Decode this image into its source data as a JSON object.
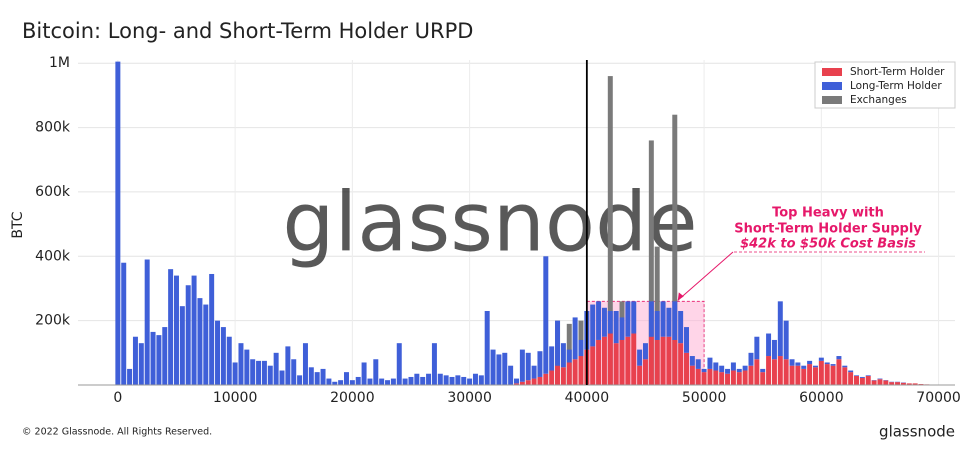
{
  "chart_data": {
    "type": "bar",
    "title": "Bitcoin: Long- and Short-Term Holder URPD",
    "y_label": "BTC",
    "watermark": "glassnode",
    "footer_left": "© 2022 Glassnode. All Rights Reserved.",
    "footer_right": "glassnode",
    "annotation": {
      "lines": [
        "Top Heavy with",
        "Short-Term Holder Supply"
      ],
      "sub": "$42k to $50k Cost Basis",
      "x": [
        40000,
        50000
      ],
      "y": [
        0,
        260000
      ],
      "arrow_to": [
        47500,
        260000
      ]
    },
    "vline": 40000,
    "xlim": [
      -3400,
      71400
    ],
    "ylim": [
      0,
      1010000
    ],
    "xticks": [
      0,
      10000,
      20000,
      30000,
      40000,
      50000,
      60000,
      70000
    ],
    "yticks": [
      {
        "value": 200000,
        "label": "200k"
      },
      {
        "value": 400000,
        "label": "400k"
      },
      {
        "value": 600000,
        "label": "600k"
      },
      {
        "value": 800000,
        "label": "800k"
      },
      {
        "value": 1000000,
        "label": "1M"
      }
    ],
    "grid": true,
    "legend": "top-right",
    "bin_width": 500,
    "x": [
      0,
      500,
      1000,
      1500,
      2000,
      2500,
      3000,
      3500,
      4000,
      4500,
      5000,
      5500,
      6000,
      6500,
      7000,
      7500,
      8000,
      8500,
      9000,
      9500,
      10000,
      10500,
      11000,
      11500,
      12000,
      12500,
      13000,
      13500,
      14000,
      14500,
      15000,
      15500,
      16000,
      16500,
      17000,
      17500,
      18000,
      18500,
      19000,
      19500,
      20000,
      20500,
      21000,
      21500,
      22000,
      22500,
      23000,
      23500,
      24000,
      24500,
      25000,
      25500,
      26000,
      26500,
      27000,
      27500,
      28000,
      28500,
      29000,
      29500,
      30000,
      30500,
      31000,
      31500,
      32000,
      32500,
      33000,
      33500,
      34000,
      34500,
      35000,
      35500,
      36000,
      36500,
      37000,
      37500,
      38000,
      38500,
      39000,
      39500,
      40000,
      40500,
      41000,
      41500,
      42000,
      42500,
      43000,
      43500,
      44000,
      44500,
      45000,
      45500,
      46000,
      46500,
      47000,
      47500,
      48000,
      48500,
      49000,
      49500,
      50000,
      50500,
      51000,
      51500,
      52000,
      52500,
      53000,
      53500,
      54000,
      54500,
      55000,
      55500,
      56000,
      56500,
      57000,
      57500,
      58000,
      58500,
      59000,
      59500,
      60000,
      60500,
      61000,
      61500,
      62000,
      62500,
      63000,
      63500,
      64000,
      64500,
      65000,
      65500,
      66000,
      66500,
      67000,
      67500,
      68000,
      68500,
      69000
    ],
    "series": [
      {
        "name": "Short-Term Holder",
        "color": "#e8414e",
        "values": [
          0,
          0,
          0,
          0,
          0,
          0,
          0,
          0,
          0,
          0,
          0,
          0,
          0,
          0,
          0,
          0,
          0,
          0,
          0,
          0,
          0,
          0,
          0,
          0,
          0,
          0,
          0,
          0,
          0,
          0,
          0,
          0,
          0,
          0,
          0,
          0,
          0,
          0,
          0,
          0,
          0,
          0,
          0,
          0,
          0,
          0,
          0,
          0,
          0,
          0,
          0,
          0,
          0,
          0,
          0,
          0,
          0,
          0,
          0,
          0,
          0,
          0,
          0,
          0,
          0,
          0,
          0,
          0,
          5000,
          10000,
          15000,
          20000,
          25000,
          35000,
          45000,
          60000,
          55000,
          70000,
          80000,
          90000,
          110000,
          120000,
          140000,
          150000,
          160000,
          130000,
          140000,
          150000,
          160000,
          60000,
          80000,
          150000,
          140000,
          150000,
          150000,
          140000,
          130000,
          100000,
          60000,
          50000,
          40000,
          50000,
          45000,
          40000,
          35000,
          45000,
          40000,
          45000,
          60000,
          80000,
          40000,
          90000,
          80000,
          90000,
          80000,
          60000,
          60000,
          50000,
          65000,
          55000,
          75000,
          65000,
          60000,
          80000,
          55000,
          40000,
          28000,
          22000,
          28000,
          14000,
          18000,
          14000,
          9000,
          9000,
          7000,
          5000,
          5000,
          3000,
          2000
        ]
      },
      {
        "name": "Long-Term Holder",
        "color": "#3f5fd8",
        "values": [
          1005000,
          380000,
          50000,
          150000,
          130000,
          390000,
          165000,
          155000,
          180000,
          360000,
          340000,
          245000,
          310000,
          340000,
          270000,
          250000,
          345000,
          200000,
          180000,
          150000,
          70000,
          130000,
          110000,
          80000,
          75000,
          75000,
          60000,
          100000,
          45000,
          120000,
          80000,
          30000,
          130000,
          55000,
          40000,
          50000,
          20000,
          10000,
          15000,
          40000,
          15000,
          25000,
          70000,
          20000,
          80000,
          20000,
          15000,
          20000,
          130000,
          20000,
          25000,
          35000,
          25000,
          35000,
          130000,
          35000,
          30000,
          25000,
          30000,
          25000,
          20000,
          35000,
          30000,
          230000,
          110000,
          95000,
          100000,
          60000,
          15000,
          100000,
          85000,
          40000,
          80000,
          365000,
          75000,
          140000,
          75000,
          40000,
          130000,
          50000,
          120000,
          130000,
          120000,
          90000,
          70000,
          100000,
          70000,
          110000,
          100000,
          50000,
          50000,
          110000,
          90000,
          110000,
          90000,
          120000,
          100000,
          80000,
          30000,
          30000,
          10000,
          35000,
          25000,
          20000,
          15000,
          25000,
          10000,
          15000,
          40000,
          70000,
          10000,
          70000,
          60000,
          170000,
          120000,
          20000,
          10000,
          10000,
          10000,
          5000,
          10000,
          5000,
          5000,
          10000,
          5000,
          5000,
          2000,
          3000,
          2000,
          1000,
          2000,
          1000,
          1000,
          1000,
          1000,
          0,
          0,
          0,
          0
        ]
      },
      {
        "name": "Exchanges",
        "color": "#7a7a7a",
        "overlay": true,
        "values": [
          null,
          null,
          null,
          null,
          null,
          null,
          null,
          null,
          null,
          null,
          null,
          null,
          null,
          null,
          null,
          null,
          null,
          null,
          null,
          null,
          null,
          null,
          null,
          null,
          null,
          null,
          null,
          null,
          null,
          null,
          null,
          null,
          null,
          null,
          null,
          null,
          null,
          null,
          null,
          null,
          null,
          null,
          null,
          null,
          null,
          null,
          null,
          null,
          null,
          null,
          null,
          null,
          null,
          null,
          null,
          null,
          null,
          null,
          null,
          null,
          null,
          null,
          null,
          null,
          null,
          null,
          null,
          null,
          null,
          null,
          null,
          null,
          null,
          null,
          null,
          200000,
          null,
          190000,
          null,
          200000,
          null,
          null,
          null,
          null,
          960000,
          null,
          260000,
          null,
          null,
          null,
          null,
          760000,
          430000,
          null,
          null,
          840000,
          null,
          null,
          null,
          null,
          null,
          null,
          null,
          null,
          null,
          null,
          null,
          null,
          null,
          null,
          null,
          null,
          null,
          null,
          null,
          null,
          null,
          null,
          null,
          null,
          null,
          null,
          null,
          null,
          null,
          null,
          null,
          null,
          null,
          null,
          null,
          null,
          null,
          null,
          null,
          null,
          null,
          null,
          null
        ]
      }
    ]
  }
}
